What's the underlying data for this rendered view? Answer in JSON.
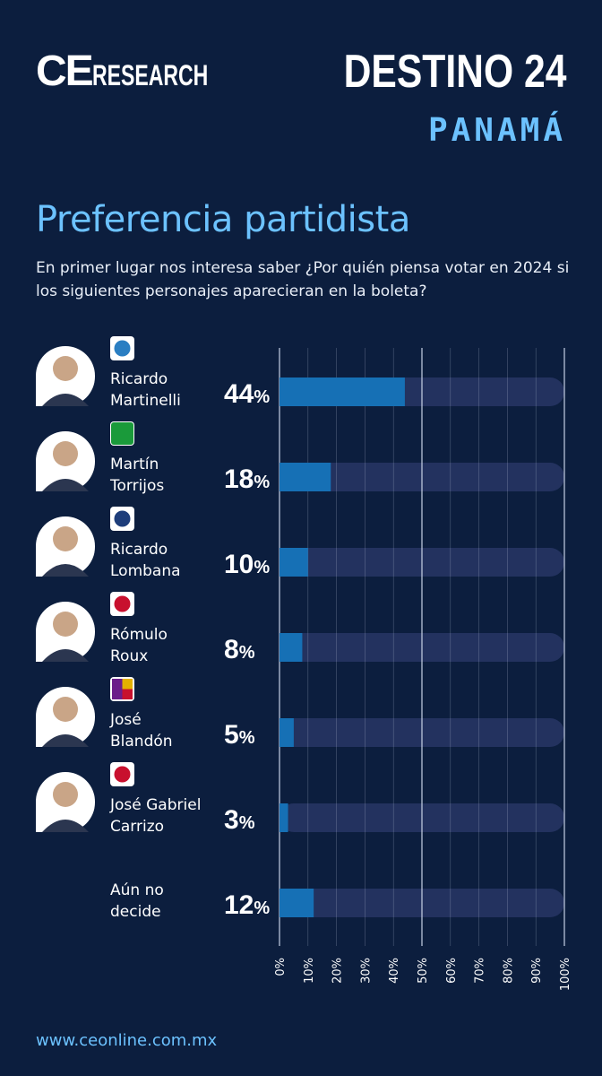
{
  "header": {
    "brand_ce": "CE",
    "brand_research": "RESEARCH",
    "event": "DESTINO 24",
    "country": "PANAMÁ"
  },
  "colors": {
    "background": "#0c1e3e",
    "bar_fill": "#1670b5",
    "bar_track": "#23325f",
    "accent": "#6cc2ff",
    "grid": "#c8d2e6"
  },
  "chart_data": {
    "type": "bar",
    "orientation": "horizontal",
    "title": "Preferencia partidista",
    "subtitle": "En primer lugar nos interesa saber ¿Por quién piensa votar en 2024 si los siguientes personajes aparecieran en la boleta?",
    "categories": [
      [
        "Ricardo",
        "Martinelli"
      ],
      [
        "Martín",
        "Torrijos"
      ],
      [
        "Ricardo",
        "Lombana"
      ],
      [
        "Rómulo",
        "Roux"
      ],
      [
        "José",
        "Blandón"
      ],
      [
        "José Gabriel",
        "Carrizo"
      ],
      [
        "Aún no",
        "decide"
      ]
    ],
    "values": [
      44,
      18,
      10,
      8,
      5,
      3,
      12
    ],
    "value_labels": [
      "44",
      "18",
      "10",
      "8",
      "5",
      "3",
      "12"
    ],
    "unit": "%",
    "xlim": [
      0,
      100
    ],
    "ticks": [
      "0%",
      "10%",
      "20%",
      "30%",
      "40%",
      "50%",
      "60%",
      "70%",
      "80%",
      "90%",
      "100%"
    ],
    "party_icons": [
      "rm-party-icon",
      "prd-party-icon",
      "mota-party-icon",
      "cd-party-icon",
      "panamenista-party-icon",
      "mover-party-icon",
      ""
    ],
    "photos": [
      "candidate-photo",
      "candidate-photo",
      "candidate-photo",
      "candidate-photo",
      "candidate-photo",
      "candidate-photo",
      ""
    ]
  },
  "footer": {
    "url": "www.ceonline.com.mx"
  }
}
